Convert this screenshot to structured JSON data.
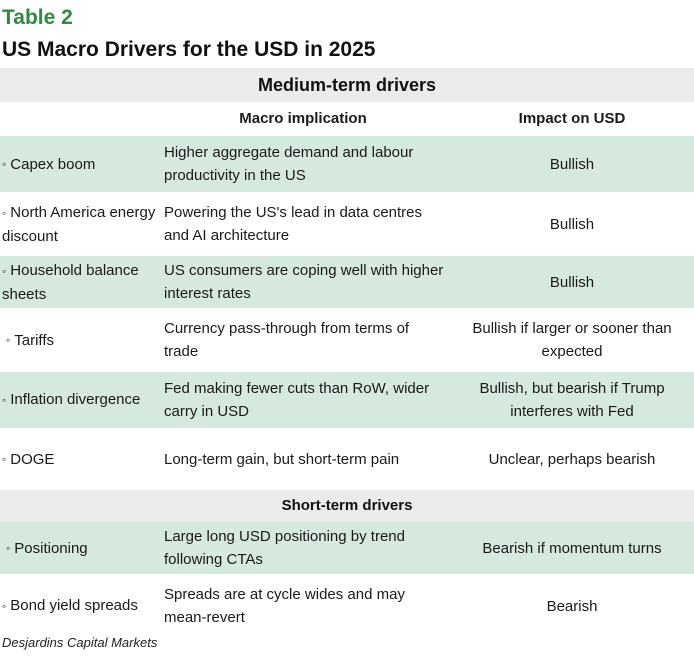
{
  "table_label": "Table 2",
  "title": "US Macro Drivers for the USD in 2025",
  "sections": {
    "medium": "Medium-term drivers",
    "short": "Short-term drivers"
  },
  "columns": {
    "implication": "Macro implication",
    "impact": "Impact on USD"
  },
  "bullet": "◦",
  "rows": [
    {
      "driver": "Capex boom",
      "implication": "Higher aggregate demand and labour productivity in the US",
      "impact": "Bullish"
    },
    {
      "driver": "North America energy discount",
      "implication": "Powering the US's lead in data centres and AI architecture",
      "impact": "Bullish"
    },
    {
      "driver": "Household balance sheets",
      "implication": "US consumers are coping well with higher interest rates",
      "impact": "Bullish"
    },
    {
      "driver": "Tariffs",
      "implication": "Currency pass-through from terms of trade",
      "impact": "Bullish if larger or sooner than expected"
    },
    {
      "driver": "Inflation divergence",
      "implication": "Fed making fewer cuts than RoW, wider carry in USD",
      "impact": "Bullish, but bearish if Trump interferes with Fed"
    },
    {
      "driver": "DOGE",
      "implication": "Long-term gain, but short-term pain",
      "impact": "Unclear, perhaps bearish"
    },
    {
      "driver": "Positioning",
      "implication": "Large long USD positioning by trend following CTAs",
      "impact": "Bearish if momentum turns"
    },
    {
      "driver": "Bond yield spreads",
      "implication": "Spreads are at cycle wides and may mean-revert",
      "impact": "Bearish"
    }
  ],
  "source": "Desjardins Capital Markets"
}
